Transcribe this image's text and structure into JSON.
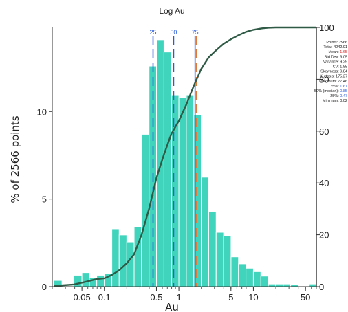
{
  "chart_data": {
    "type": "bar",
    "title": "Log Au",
    "xlabel": "Au",
    "ylabel": "% of 2566 points",
    "x_scale": "log",
    "xlim": [
      0.02,
      70
    ],
    "ylim": [
      0,
      14.8
    ],
    "y2lim": [
      0,
      100
    ],
    "x_tick_labels": [
      {
        "value": 0.05,
        "label": "0.05"
      },
      {
        "value": 0.1,
        "label": "0.1"
      },
      {
        "value": 0.5,
        "label": "0.5"
      },
      {
        "value": 1,
        "label": "1"
      },
      {
        "value": 5,
        "label": "5"
      },
      {
        "value": 10,
        "label": "10"
      },
      {
        "value": 50,
        "label": "50"
      }
    ],
    "y_tick_labels": [
      {
        "value": 0,
        "label": "0"
      },
      {
        "value": 5,
        "label": "5"
      },
      {
        "value": 10,
        "label": "10"
      }
    ],
    "y2_tick_labels": [
      {
        "value": 0,
        "label": "0"
      },
      {
        "value": 20,
        "label": "20"
      },
      {
        "value": 40,
        "label": "40"
      },
      {
        "value": 60,
        "label": "60"
      },
      {
        "value": 80,
        "label": "80"
      },
      {
        "value": 100,
        "label": "100"
      }
    ],
    "bar_color": "#40d4bd",
    "bars": [
      {
        "x0": 0.021,
        "x1": 0.027,
        "value": 0.35
      },
      {
        "x0": 0.039,
        "x1": 0.05,
        "value": 0.65
      },
      {
        "x0": 0.05,
        "x1": 0.063,
        "value": 0.8
      },
      {
        "x0": 0.063,
        "x1": 0.079,
        "value": 0.5
      },
      {
        "x0": 0.079,
        "x1": 0.1,
        "value": 0.65
      },
      {
        "x0": 0.1,
        "x1": 0.126,
        "value": 0.75
      },
      {
        "x0": 0.126,
        "x1": 0.158,
        "value": 3.3
      },
      {
        "x0": 0.158,
        "x1": 0.2,
        "value": 2.95
      },
      {
        "x0": 0.2,
        "x1": 0.251,
        "value": 2.55
      },
      {
        "x0": 0.251,
        "x1": 0.316,
        "value": 3.4
      },
      {
        "x0": 0.316,
        "x1": 0.398,
        "value": 8.7
      },
      {
        "x0": 0.398,
        "x1": 0.501,
        "value": 12.6
      },
      {
        "x0": 0.501,
        "x1": 0.631,
        "value": 14.1
      },
      {
        "x0": 0.631,
        "x1": 0.794,
        "value": 13.4
      },
      {
        "x0": 0.794,
        "x1": 1.0,
        "value": 10.95
      },
      {
        "x0": 1.0,
        "x1": 1.259,
        "value": 10.8
      },
      {
        "x0": 1.259,
        "x1": 1.585,
        "value": 10.95
      },
      {
        "x0": 1.585,
        "x1": 1.995,
        "value": 9.8
      },
      {
        "x0": 1.995,
        "x1": 2.512,
        "value": 6.25
      },
      {
        "x0": 2.512,
        "x1": 3.162,
        "value": 4.3
      },
      {
        "x0": 3.162,
        "x1": 3.981,
        "value": 3.1
      },
      {
        "x0": 3.981,
        "x1": 5.012,
        "value": 2.9
      },
      {
        "x0": 5.012,
        "x1": 6.31,
        "value": 1.7
      },
      {
        "x0": 6.31,
        "x1": 7.943,
        "value": 1.3
      },
      {
        "x0": 7.943,
        "x1": 10.0,
        "value": 1.05
      },
      {
        "x0": 10.0,
        "x1": 12.59,
        "value": 0.85
      },
      {
        "x0": 12.59,
        "x1": 15.85,
        "value": 0.6
      },
      {
        "x0": 15.85,
        "x1": 19.95,
        "value": 0.15
      },
      {
        "x0": 19.95,
        "x1": 25.12,
        "value": 0.15
      },
      {
        "x0": 25.12,
        "x1": 31.62,
        "value": 0.15
      },
      {
        "x0": 31.62,
        "x1": 39.81,
        "value": 0.1
      },
      {
        "x0": 56.23,
        "x1": 70.0,
        "value": 0.15
      }
    ],
    "cumulative_curve": {
      "color": "#2f5a45",
      "points": [
        [
          0.021,
          0.3
        ],
        [
          0.027,
          0.5
        ],
        [
          0.039,
          0.8
        ],
        [
          0.05,
          1.5
        ],
        [
          0.063,
          2.2
        ],
        [
          0.079,
          2.9
        ],
        [
          0.1,
          3.2
        ],
        [
          0.126,
          4.5
        ],
        [
          0.158,
          6.3
        ],
        [
          0.2,
          9.0
        ],
        [
          0.251,
          12.5
        ],
        [
          0.316,
          20
        ],
        [
          0.398,
          30
        ],
        [
          0.501,
          42
        ],
        [
          0.631,
          51
        ],
        [
          0.794,
          59
        ],
        [
          1.0,
          64
        ],
        [
          1.259,
          70.3
        ],
        [
          1.585,
          77.5
        ],
        [
          1.995,
          84
        ],
        [
          2.512,
          88.5
        ],
        [
          3.162,
          91.2
        ],
        [
          3.981,
          93.7
        ],
        [
          5.012,
          95.5
        ],
        [
          6.31,
          97
        ],
        [
          7.943,
          98.3
        ],
        [
          10.0,
          99.1
        ],
        [
          12.59,
          99.6
        ],
        [
          15.85,
          99.9
        ],
        [
          19.95,
          100
        ],
        [
          31.62,
          100
        ],
        [
          70.0,
          100
        ]
      ]
    },
    "percentile_lines": [
      {
        "label": "25",
        "value": 0.45,
        "color": "#2a5bd7",
        "style": "dashed"
      },
      {
        "label": "50",
        "value": 0.85,
        "color": "#2a5bd7",
        "style": "dashed"
      },
      {
        "label": "75",
        "value": 1.65,
        "color": "#2a5bd7",
        "style": "solid"
      },
      {
        "label": "",
        "value": 1.72,
        "color": "#e07a3c",
        "style": "dashed"
      }
    ],
    "stats": [
      {
        "label": "Points:",
        "value": "2566",
        "color": "#111111"
      },
      {
        "label": "Total:",
        "value": "4242.91",
        "color": "#111111"
      },
      {
        "label": "Mean:",
        "value": "1.65",
        "color": "#d62020"
      },
      {
        "label": "Std Dev:",
        "value": "3.05",
        "color": "#111111"
      },
      {
        "label": "Variance:",
        "value": "9.29",
        "color": "#111111"
      },
      {
        "label": "CV:",
        "value": "1.85",
        "color": "#111111"
      },
      {
        "label": "Skewness:",
        "value": "9.84",
        "color": "#111111"
      },
      {
        "label": "Kurtosis:",
        "value": "175.27",
        "color": "#111111"
      },
      {
        "label": "Maximum:",
        "value": "77.46",
        "color": "#111111"
      },
      {
        "label": "75%:",
        "value": "1.67",
        "color": "#2a5bd7"
      },
      {
        "label": "50% (median):",
        "value": "0.85",
        "color": "#2a5bd7"
      },
      {
        "label": "25%:",
        "value": "0.47",
        "color": "#2a5bd7"
      },
      {
        "label": "Minimum:",
        "value": "0.02",
        "color": "#111111"
      }
    ]
  }
}
